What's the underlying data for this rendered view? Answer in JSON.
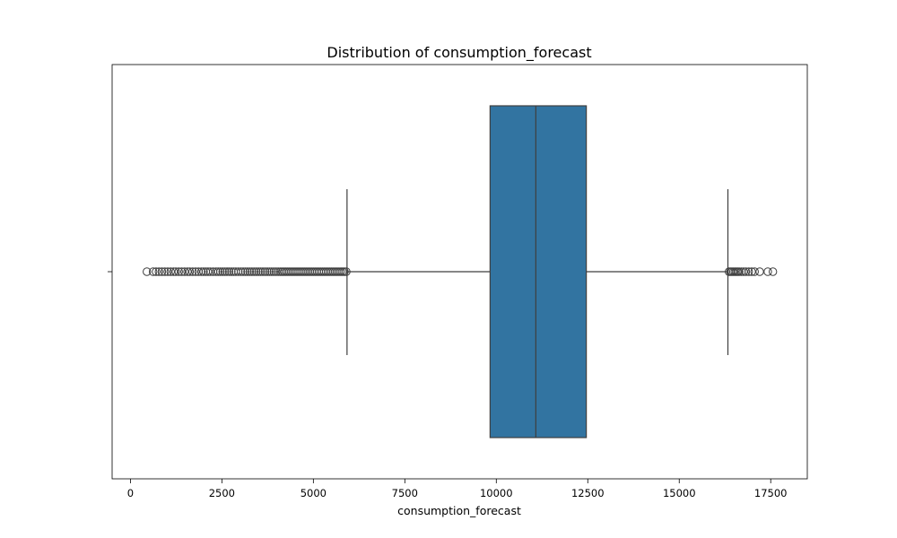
{
  "chart_data": {
    "type": "box",
    "orientation": "horizontal",
    "title": "Distribution of consumption_forecast",
    "xlabel": "consumption_forecast",
    "ylabel": "",
    "xlim": [
      -500,
      18500
    ],
    "xticks": [
      0,
      2500,
      5000,
      7500,
      10000,
      12500,
      15000,
      17500
    ],
    "xtick_labels": [
      "0",
      "2500",
      "5000",
      "7500",
      "10000",
      "12500",
      "15000",
      "17500"
    ],
    "grid": false,
    "box": {
      "whisker_low": 5920,
      "q1": 9830,
      "median": 11080,
      "q3": 12460,
      "whisker_high": 16330,
      "fill_color": "#3274a1",
      "line_color": "#3f3f3f"
    },
    "outliers": [
      450,
      620,
      700,
      780,
      860,
      940,
      1020,
      1100,
      1180,
      1240,
      1320,
      1400,
      1480,
      1560,
      1620,
      1700,
      1780,
      1860,
      1940,
      2000,
      2060,
      2120,
      2180,
      2260,
      2340,
      2400,
      2460,
      2520,
      2580,
      2640,
      2700,
      2760,
      2820,
      2880,
      2950,
      3020,
      3080,
      3140,
      3200,
      3260,
      3320,
      3380,
      3440,
      3500,
      3560,
      3620,
      3680,
      3740,
      3800,
      3860,
      3920,
      3980,
      4040,
      4100,
      4150,
      4200,
      4250,
      4300,
      4350,
      4400,
      4450,
      4500,
      4550,
      4600,
      4650,
      4700,
      4750,
      4800,
      4850,
      4900,
      4950,
      5000,
      5050,
      5100,
      5150,
      5200,
      5250,
      5300,
      5350,
      5400,
      5450,
      5500,
      5550,
      5600,
      5650,
      5700,
      5750,
      5800,
      5850,
      5900,
      16360,
      16400,
      16440,
      16480,
      16520,
      16560,
      16600,
      16640,
      16700,
      16760,
      16820,
      16900,
      16980,
      17060,
      17200,
      17420,
      17560
    ]
  }
}
